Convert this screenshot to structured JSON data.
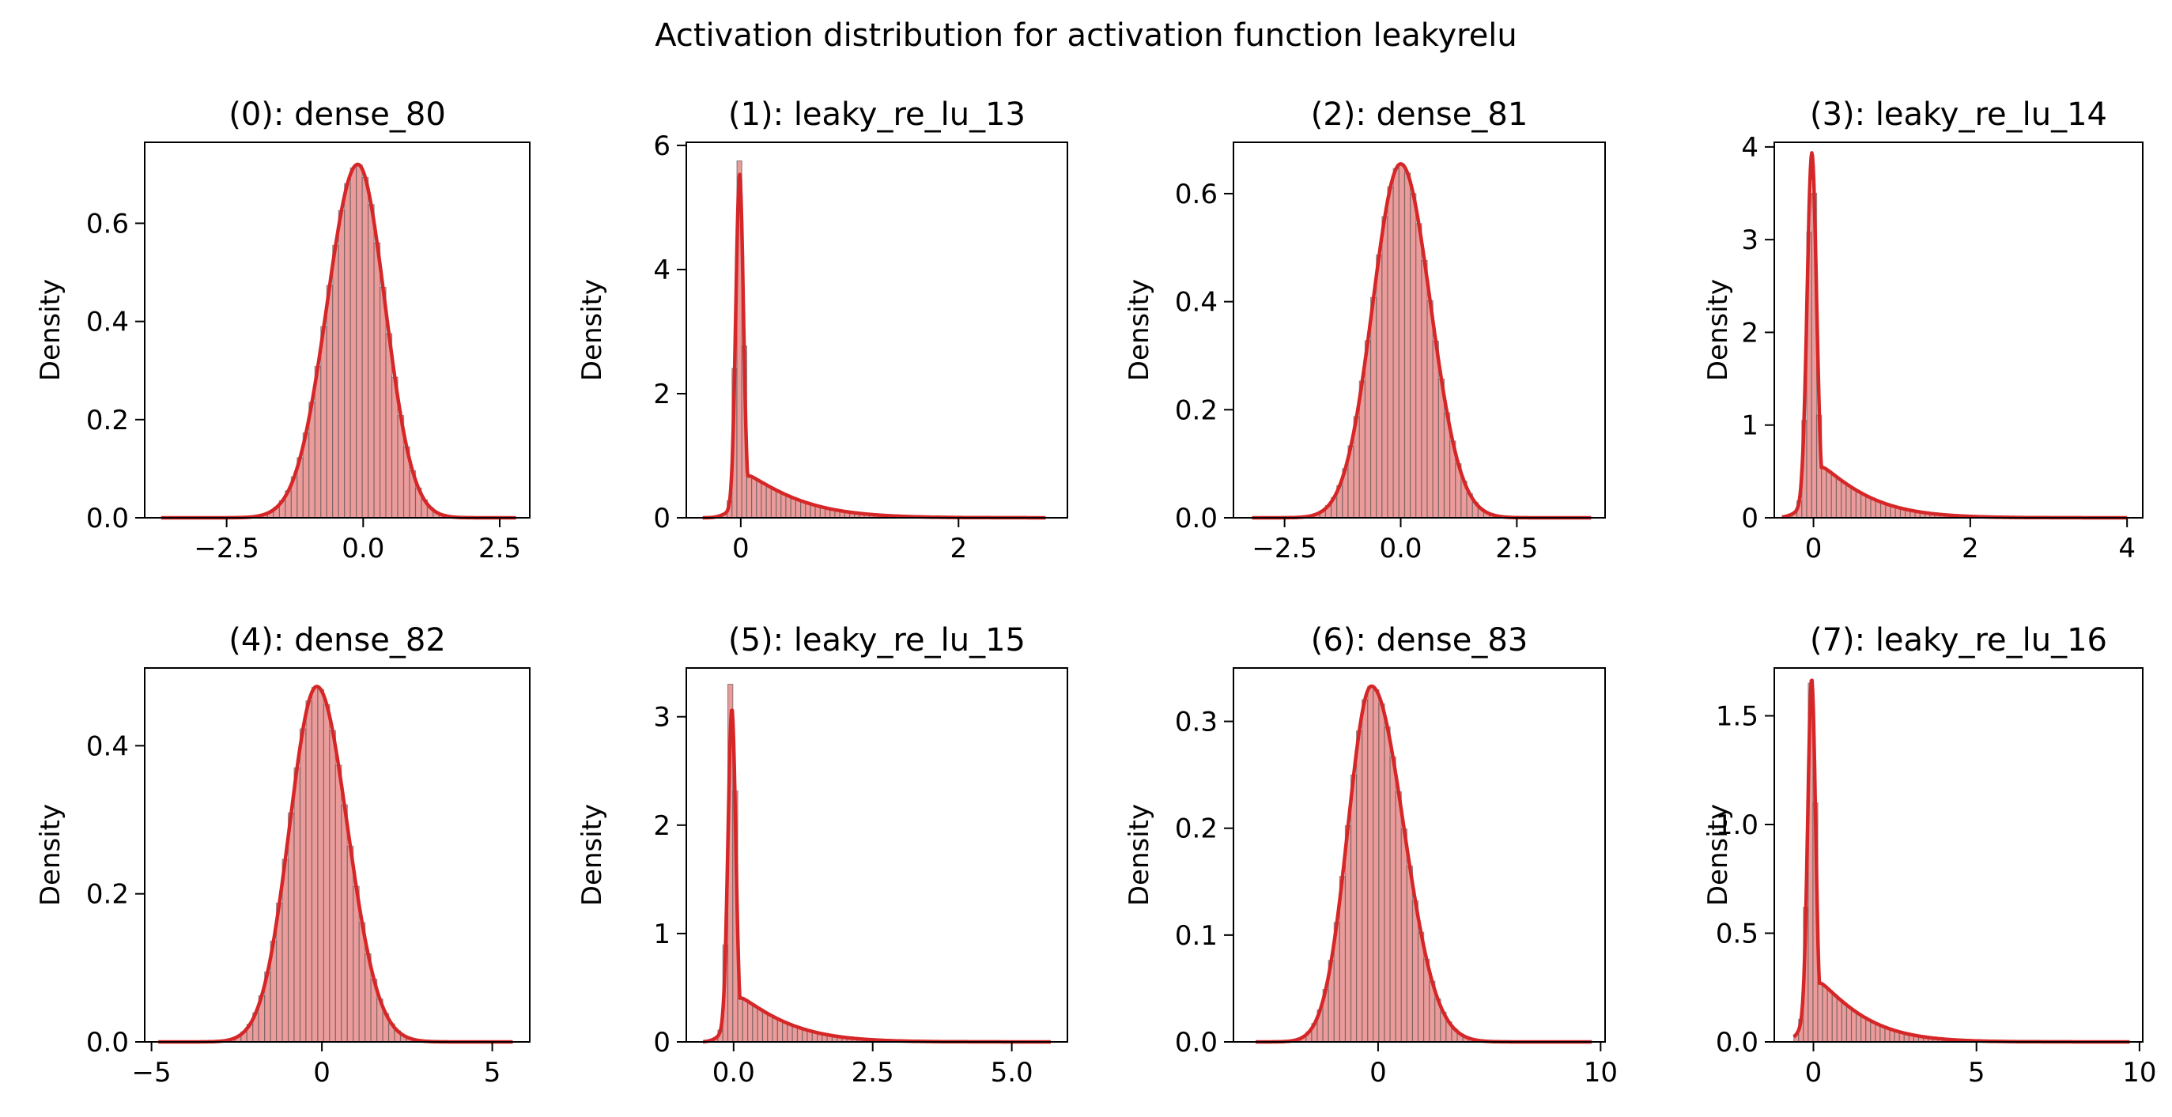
{
  "figure": {
    "title": "Activation distribution for activation function leakyrelu"
  },
  "style": {
    "bar_fill": "#ec9b9b",
    "bar_edge": "#4a4a4a",
    "kde_color": "#d62728"
  },
  "chart_data": [
    {
      "type": "histogram+kde",
      "title": "(0): dense_80",
      "xlabel": "",
      "ylabel": "Density",
      "xlim": [
        -4.0,
        3.05
      ],
      "ylim": [
        0,
        0.765
      ],
      "xticks": [
        -2.5,
        0.0,
        2.5
      ],
      "xtick_labels": [
        "−2.5",
        "0.0",
        "2.5"
      ],
      "yticks": [
        0.0,
        0.2,
        0.4,
        0.6
      ],
      "ytick_labels": [
        "0.0",
        "0.2",
        "0.4",
        "0.6"
      ],
      "distribution": {
        "kind": "normal",
        "x_min": -3.7,
        "x_max": 2.8,
        "peak_x": -0.1,
        "peak_density": 0.72,
        "sd_left": 0.56,
        "sd_right": 0.5
      },
      "bins": 60
    },
    {
      "type": "histogram+kde",
      "title": "(1): leaky_re_lu_13",
      "xlabel": "",
      "ylabel": "Density",
      "xlim": [
        -0.5,
        3.0
      ],
      "ylim": [
        0,
        6.05
      ],
      "xticks": [
        0,
        2
      ],
      "xtick_labels": [
        "0",
        "2"
      ],
      "yticks": [
        0,
        2,
        4,
        6
      ],
      "ytick_labels": [
        "0",
        "2",
        "4",
        "6"
      ],
      "distribution": {
        "kind": "leaky_relu",
        "x_min": -0.35,
        "x_max": 2.8,
        "spike_x": -0.01,
        "spike_hist": 5.75,
        "spike_kde": 5.45,
        "spike_width": 0.035,
        "shoulder": 0.75,
        "decay": 0.55
      },
      "bins": 70
    },
    {
      "type": "histogram+kde",
      "title": "(2): dense_81",
      "xlabel": "",
      "ylabel": "Density",
      "xlim": [
        -3.6,
        4.4
      ],
      "ylim": [
        0,
        0.695
      ],
      "xticks": [
        -2.5,
        0.0,
        2.5
      ],
      "xtick_labels": [
        "−2.5",
        "0.0",
        "2.5"
      ],
      "yticks": [
        0.0,
        0.2,
        0.4,
        0.6
      ],
      "ytick_labels": [
        "0.0",
        "0.2",
        "0.4",
        "0.6"
      ],
      "distribution": {
        "kind": "normal",
        "x_min": -3.2,
        "x_max": 4.1,
        "peak_x": 0.0,
        "peak_density": 0.655,
        "sd_left": 0.6,
        "sd_right": 0.64
      },
      "bins": 60
    },
    {
      "type": "histogram+kde",
      "title": "(3): leaky_re_lu_14",
      "xlabel": "",
      "ylabel": "Density",
      "xlim": [
        -0.5,
        4.2
      ],
      "ylim": [
        0,
        4.05
      ],
      "xticks": [
        0,
        2,
        4
      ],
      "xtick_labels": [
        "0",
        "2",
        "4"
      ],
      "yticks": [
        0,
        1,
        2,
        3,
        4
      ],
      "ytick_labels": [
        "0",
        "1",
        "2",
        "3",
        "4"
      ],
      "distribution": {
        "kind": "leaky_relu",
        "x_min": -0.4,
        "x_max": 4.0,
        "spike_x": -0.02,
        "spike_hist": 3.5,
        "spike_kde": 3.85,
        "spike_width": 0.06,
        "shoulder": 0.62,
        "decay": 0.7
      },
      "bins": 70
    },
    {
      "type": "histogram+kde",
      "title": "(4): dense_82",
      "xlabel": "",
      "ylabel": "Density",
      "xlim": [
        -5.2,
        6.1
      ],
      "ylim": [
        0,
        0.505
      ],
      "xticks": [
        -5,
        0,
        5
      ],
      "xtick_labels": [
        "−5",
        "0",
        "5"
      ],
      "yticks": [
        0.0,
        0.2,
        0.4
      ],
      "ytick_labels": [
        "0.0",
        "0.2",
        "0.4"
      ],
      "distribution": {
        "kind": "normal",
        "x_min": -4.8,
        "x_max": 5.6,
        "peak_x": -0.15,
        "peak_density": 0.48,
        "sd_left": 0.8,
        "sd_right": 0.9
      },
      "bins": 60
    },
    {
      "type": "histogram+kde",
      "title": "(5): leaky_re_lu_15",
      "xlabel": "",
      "ylabel": "Density",
      "xlim": [
        -0.85,
        6.0
      ],
      "ylim": [
        0,
        3.45
      ],
      "xticks": [
        0.0,
        2.5,
        5.0
      ],
      "xtick_labels": [
        "0.0",
        "2.5",
        "5.0"
      ],
      "yticks": [
        0,
        1,
        2,
        3
      ],
      "ytick_labels": [
        "0",
        "1",
        "2",
        "3"
      ],
      "distribution": {
        "kind": "leaky_relu",
        "x_min": -0.55,
        "x_max": 5.7,
        "spike_x": -0.03,
        "spike_hist": 3.3,
        "spike_kde": 2.98,
        "spike_width": 0.07,
        "shoulder": 0.45,
        "decay": 1.0
      },
      "bins": 70
    },
    {
      "type": "histogram+kde",
      "title": "(6): dense_83",
      "xlabel": "",
      "ylabel": "Density",
      "xlim": [
        -6.5,
        10.2
      ],
      "ylim": [
        0,
        0.35
      ],
      "xticks": [
        0,
        10
      ],
      "xtick_labels": [
        "0",
        "10"
      ],
      "yticks": [
        0.0,
        0.1,
        0.2,
        0.3
      ],
      "ytick_labels": [
        "0.0",
        "0.1",
        "0.2",
        "0.3"
      ],
      "distribution": {
        "kind": "normal",
        "x_min": -5.5,
        "x_max": 9.6,
        "peak_x": -0.3,
        "peak_density": 0.333,
        "sd_left": 1.05,
        "sd_right": 1.45
      },
      "bins": 60
    },
    {
      "type": "histogram+kde",
      "title": "(7): leaky_re_lu_16",
      "xlabel": "",
      "ylabel": "Density",
      "xlim": [
        -1.2,
        10.1
      ],
      "ylim": [
        0,
        1.72
      ],
      "xticks": [
        0,
        5,
        10
      ],
      "xtick_labels": [
        "0",
        "5",
        "10"
      ],
      "yticks": [
        0.0,
        0.5,
        1.0,
        1.5
      ],
      "ytick_labels": [
        "0.0",
        "0.5",
        "1.0",
        "1.5"
      ],
      "distribution": {
        "kind": "leaky_relu",
        "x_min": -0.6,
        "x_max": 9.7,
        "spike_x": -0.05,
        "spike_hist": 1.65,
        "spike_kde": 1.58,
        "spike_width": 0.12,
        "shoulder": 0.3,
        "decay": 1.6
      },
      "bins": 70
    }
  ]
}
